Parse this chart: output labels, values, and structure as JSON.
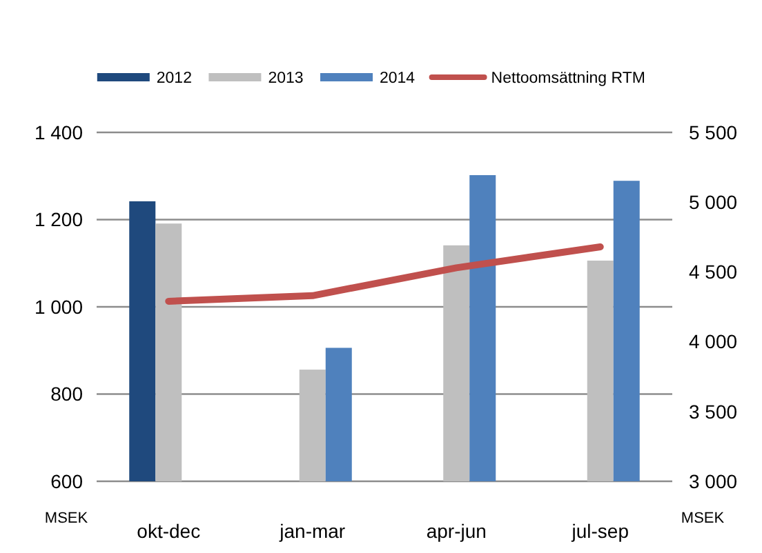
{
  "chart_data": {
    "type": "bar",
    "categories": [
      "okt-dec",
      "jan-mar",
      "apr-jun",
      "jul-sep"
    ],
    "series": [
      {
        "name": "2012",
        "color": "#1f497d",
        "values": [
          1242,
          null,
          null,
          null
        ]
      },
      {
        "name": "2013",
        "color": "#bfbfbf",
        "values": [
          1191,
          856,
          1141,
          1106
        ]
      },
      {
        "name": "2014",
        "color": "#4f81bd",
        "values": [
          null,
          906,
          1302,
          1289
        ]
      },
      {
        "name": "Nettoomsättning RTM",
        "type": "line",
        "axis": "y2",
        "color": "#c0504d",
        "values": [
          4290,
          4330,
          4530,
          4680
        ]
      }
    ],
    "ylabel": "MSEK",
    "y2label": "MSEK",
    "ylim": [
      600,
      1400
    ],
    "yticks": [
      {
        "value": 600,
        "label": "600"
      },
      {
        "value": 800,
        "label": "800"
      },
      {
        "value": 1000,
        "label": "1 000"
      },
      {
        "value": 1200,
        "label": "1 200"
      },
      {
        "value": 1400,
        "label": "1 400"
      }
    ],
    "y2lim": [
      3000,
      5500
    ],
    "y2ticks": [
      {
        "value": 3000,
        "label": "3 000"
      },
      {
        "value": 3500,
        "label": "3 500"
      },
      {
        "value": 4000,
        "label": "4 000"
      },
      {
        "value": 4500,
        "label": "4 500"
      },
      {
        "value": 5000,
        "label": "5 000"
      },
      {
        "value": 5500,
        "label": "5 500"
      }
    ],
    "grid": "y",
    "legend": "top",
    "marker": "none",
    "line_style": "solid"
  }
}
